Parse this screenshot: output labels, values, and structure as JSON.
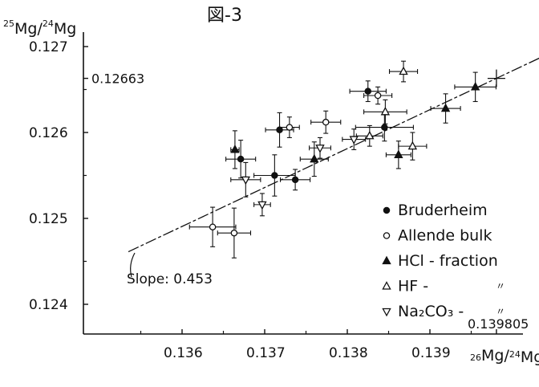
{
  "chart_data": {
    "type": "scatter",
    "title": "図-3",
    "ylabel": "25Mg/24Mg",
    "xlabel": "26Mg/24Mg",
    "xlim": [
      0.1351,
      0.1405
    ],
    "ylim": [
      0.12345,
      0.12708
    ],
    "x_ticks": [
      {
        "value": 0.136,
        "label": "0.136"
      },
      {
        "value": 0.137,
        "label": "0.137"
      },
      {
        "value": 0.138,
        "label": "0.138"
      },
      {
        "value": 0.139,
        "label": "0.139"
      }
    ],
    "y_ticks": [
      {
        "value": 0.124,
        "label": "0.124"
      },
      {
        "value": 0.125,
        "label": "0.125"
      },
      {
        "value": 0.126,
        "label": "0.126"
      },
      {
        "value": 0.127,
        "label": "0.127"
      }
    ],
    "reference_lines": {
      "y_label": "0.12663",
      "y_value": 0.12663,
      "x_label": "0.139805",
      "x_value": 0.139805
    },
    "fit_line": {
      "label": "Slope: 0.453",
      "slope": 0.453,
      "x_start": 0.13535,
      "x_end": 0.14035,
      "reference_point": [
        0.139805,
        0.12663
      ]
    },
    "series": [
      {
        "name": "Bruderheim",
        "marker": "filled-circle",
        "points": [
          {
            "x": 0.13825,
            "y": 0.12648,
            "xerr": 0.00022,
            "yerr": 0.00012
          },
          {
            "x": 0.13718,
            "y": 0.12603,
            "xerr": 0.00017,
            "yerr": 0.0002
          },
          {
            "x": 0.13845,
            "y": 0.12606,
            "xerr": 0.00035,
            "yerr": 0.00016
          },
          {
            "x": 0.13671,
            "y": 0.12569,
            "xerr": 0.00018,
            "yerr": 0.00022
          },
          {
            "x": 0.13712,
            "y": 0.1255,
            "xerr": 0.00025,
            "yerr": 0.00024
          },
          {
            "x": 0.13737,
            "y": 0.12545,
            "xerr": 0.00018,
            "yerr": 0.00012
          }
        ]
      },
      {
        "name": "Allende bulk",
        "marker": "open-circle",
        "points": [
          {
            "x": 0.13837,
            "y": 0.12643,
            "xerr": 0.00017,
            "yerr": 0.0001
          },
          {
            "x": 0.1373,
            "y": 0.12606,
            "xerr": 0.00012,
            "yerr": 0.00012
          },
          {
            "x": 0.13774,
            "y": 0.12612,
            "xerr": 0.00018,
            "yerr": 0.00013
          },
          {
            "x": 0.13637,
            "y": 0.1249,
            "xerr": 0.00028,
            "yerr": 0.00023
          },
          {
            "x": 0.13663,
            "y": 0.12483,
            "xerr": 0.0002,
            "yerr": 0.00029
          }
        ]
      },
      {
        "name": "HCl - fraction",
        "marker": "filled-triangle",
        "points": [
          {
            "x": 0.13955,
            "y": 0.12653,
            "xerr": 0.00025,
            "yerr": 0.00017
          },
          {
            "x": 0.13919,
            "y": 0.12628,
            "xerr": 0.00018,
            "yerr": 0.00017
          },
          {
            "x": 0.13664,
            "y": 0.1258,
            "xerr": 5e-05,
            "yerr": 0.00022
          },
          {
            "x": 0.1376,
            "y": 0.12569,
            "xerr": 0.00017,
            "yerr": 0.0002
          },
          {
            "x": 0.13862,
            "y": 0.12574,
            "xerr": 0.00015,
            "yerr": 0.00016
          }
        ]
      },
      {
        "name": "HF -",
        "marker": "open-triangle",
        "points": [
          {
            "x": 0.13868,
            "y": 0.12671,
            "xerr": 0.00017,
            "yerr": 0.00012
          },
          {
            "x": 0.13846,
            "y": 0.12624,
            "xerr": 0.00026,
            "yerr": 0.00014
          },
          {
            "x": 0.13827,
            "y": 0.12596,
            "xerr": 0.00016,
            "yerr": 0.00012
          },
          {
            "x": 0.13879,
            "y": 0.12584,
            "xerr": 0.00017,
            "yerr": 0.00016
          }
        ]
      },
      {
        "name": "Na2CO3 -",
        "marker": "open-inverted-triangle",
        "points": [
          {
            "x": 0.13767,
            "y": 0.12582,
            "xerr": 0.00013,
            "yerr": 0.00012
          },
          {
            "x": 0.13808,
            "y": 0.12592,
            "xerr": 0.00014,
            "yerr": 0.00012
          },
          {
            "x": 0.13677,
            "y": 0.12545,
            "xerr": 0.00018,
            "yerr": 0.0002
          },
          {
            "x": 0.13697,
            "y": 0.12516,
            "xerr": 0.0001,
            "yerr": 0.00013
          }
        ]
      }
    ],
    "legend": {
      "placement": "bottom-right",
      "ditto_mark": "〃",
      "na2co3_display": "Na₂CO₃ -"
    }
  }
}
